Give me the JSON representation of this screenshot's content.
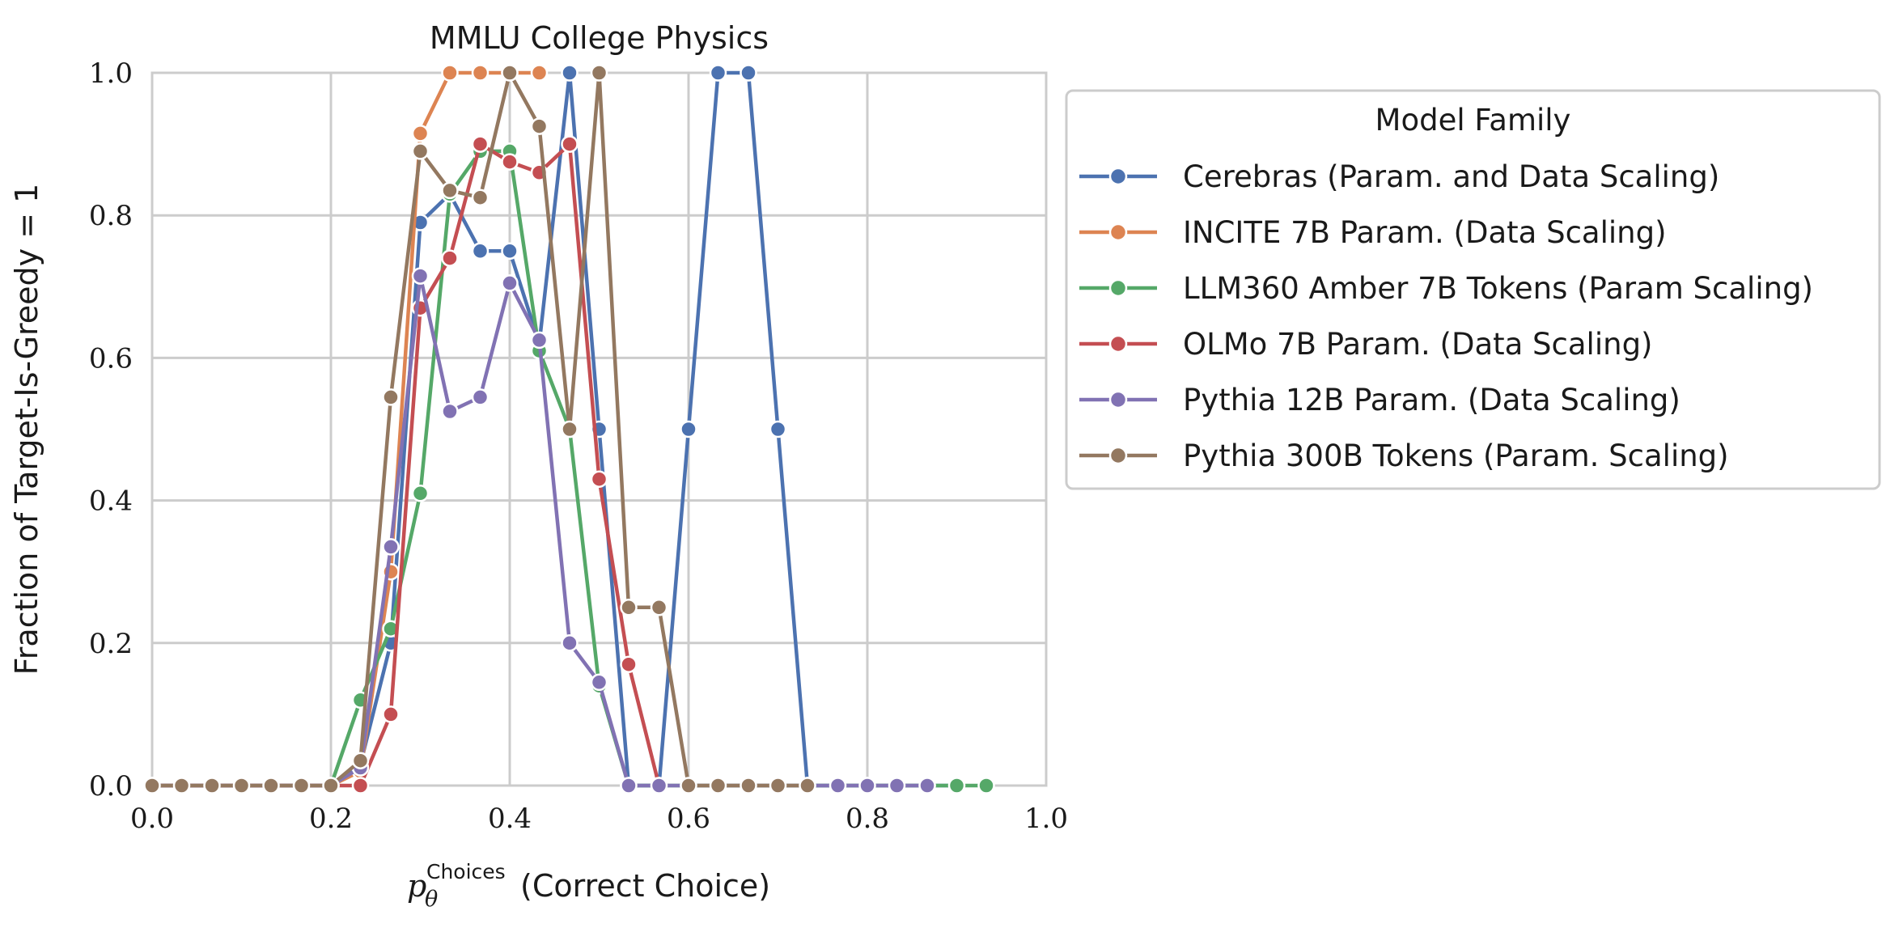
{
  "chart_data": {
    "type": "line",
    "title": "MMLU College Physics",
    "xlabel": {
      "math": "p",
      "subscript": "θ",
      "superscript": "Choices",
      "text": "(Correct Choice)"
    },
    "ylabel": "Fraction of Target-Is-Greedy = 1",
    "xlim": [
      0.0,
      1.0
    ],
    "ylim": [
      0.0,
      1.0
    ],
    "xticks": [
      "0.0",
      "0.2",
      "0.4",
      "0.6",
      "0.8",
      "1.0"
    ],
    "yticks": [
      "0.0",
      "0.2",
      "0.4",
      "0.6",
      "0.8",
      "1.0"
    ],
    "grid": true,
    "legend": {
      "title": "Model Family",
      "placement": "outside-right-top"
    },
    "series": [
      {
        "name": "Cerebras (Param. and Data Scaling)",
        "color": "#4c72b0",
        "x": [
          0.0,
          0.033,
          0.067,
          0.1,
          0.133,
          0.167,
          0.2,
          0.233,
          0.267,
          0.3,
          0.333,
          0.367,
          0.4,
          0.433,
          0.467,
          0.5,
          0.533,
          0.567,
          0.6,
          0.633,
          0.667,
          0.7,
          0.733,
          0.767,
          0.8,
          0.833,
          0.867,
          0.9
        ],
        "y": [
          0.0,
          0.0,
          0.0,
          0.0,
          0.0,
          0.0,
          0.0,
          0.03,
          0.2,
          0.79,
          0.83,
          0.75,
          0.75,
          0.62,
          1.0,
          0.5,
          0.0,
          0.0,
          0.5,
          1.0,
          1.0,
          0.5,
          0.0,
          0.0,
          0.0,
          0.0,
          0.0,
          0.0
        ]
      },
      {
        "name": "INCITE 7B Param. (Data Scaling)",
        "color": "#dd8452",
        "x": [
          0.0,
          0.033,
          0.067,
          0.1,
          0.133,
          0.167,
          0.2,
          0.233,
          0.267,
          0.3,
          0.333,
          0.367,
          0.4,
          0.433
        ],
        "y": [
          0.0,
          0.0,
          0.0,
          0.0,
          0.0,
          0.0,
          0.0,
          0.02,
          0.3,
          0.915,
          1.0,
          1.0,
          1.0,
          1.0
        ]
      },
      {
        "name": "LLM360 Amber 7B Tokens (Param Scaling)",
        "color": "#55a868",
        "x": [
          0.0,
          0.033,
          0.067,
          0.1,
          0.133,
          0.167,
          0.2,
          0.233,
          0.267,
          0.3,
          0.333,
          0.367,
          0.4,
          0.433,
          0.467,
          0.5,
          0.533,
          0.567,
          0.6,
          0.633,
          0.667,
          0.7,
          0.733,
          0.767,
          0.8,
          0.833,
          0.867,
          0.9,
          0.933
        ],
        "y": [
          0.0,
          0.0,
          0.0,
          0.0,
          0.0,
          0.0,
          0.0,
          0.12,
          0.22,
          0.41,
          0.83,
          0.89,
          0.89,
          0.61,
          0.5,
          0.14,
          0.0,
          0.0,
          0.0,
          0.0,
          0.0,
          0.0,
          0.0,
          0.0,
          0.0,
          0.0,
          0.0,
          0.0,
          0.0
        ]
      },
      {
        "name": "OLMo 7B Param. (Data Scaling)",
        "color": "#c44e52",
        "x": [
          0.0,
          0.033,
          0.067,
          0.1,
          0.133,
          0.167,
          0.2,
          0.233,
          0.267,
          0.3,
          0.333,
          0.367,
          0.4,
          0.433,
          0.467,
          0.5,
          0.533,
          0.567
        ],
        "y": [
          0.0,
          0.0,
          0.0,
          0.0,
          0.0,
          0.0,
          0.0,
          0.0,
          0.1,
          0.67,
          0.74,
          0.9,
          0.875,
          0.86,
          0.9,
          0.43,
          0.17,
          0.0
        ]
      },
      {
        "name": "Pythia 12B Param. (Data Scaling)",
        "color": "#8172b3",
        "x": [
          0.0,
          0.033,
          0.067,
          0.1,
          0.133,
          0.167,
          0.2,
          0.233,
          0.267,
          0.3,
          0.333,
          0.367,
          0.4,
          0.433,
          0.467,
          0.5,
          0.533,
          0.567,
          0.6,
          0.633,
          0.667,
          0.7,
          0.733,
          0.767,
          0.8,
          0.833,
          0.867
        ],
        "y": [
          0.0,
          0.0,
          0.0,
          0.0,
          0.0,
          0.0,
          0.0,
          0.025,
          0.335,
          0.715,
          0.525,
          0.545,
          0.705,
          0.625,
          0.2,
          0.145,
          0.0,
          0.0,
          0.0,
          0.0,
          0.0,
          0.0,
          0.0,
          0.0,
          0.0,
          0.0,
          0.0
        ]
      },
      {
        "name": "Pythia 300B Tokens (Param. Scaling)",
        "color": "#937860",
        "x": [
          0.0,
          0.033,
          0.067,
          0.1,
          0.133,
          0.167,
          0.2,
          0.233,
          0.267,
          0.3,
          0.333,
          0.367,
          0.4,
          0.433,
          0.467,
          0.5,
          0.533,
          0.567,
          0.6,
          0.633,
          0.667,
          0.7,
          0.733
        ],
        "y": [
          0.0,
          0.0,
          0.0,
          0.0,
          0.0,
          0.0,
          0.0,
          0.035,
          0.545,
          0.89,
          0.835,
          0.825,
          1.0,
          0.925,
          0.5,
          1.0,
          0.25,
          0.25,
          0.0,
          0.0,
          0.0,
          0.0,
          0.0
        ]
      }
    ]
  }
}
